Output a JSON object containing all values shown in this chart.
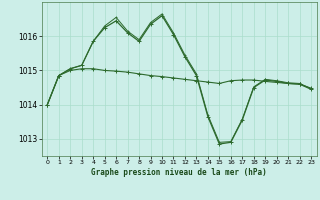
{
  "title": "Graphe pression niveau de la mer (hPa)",
  "bg_color": "#cceee8",
  "grid_color": "#aaddcc",
  "line_color": "#2d6a2d",
  "marker_color": "#2d6a2d",
  "xlim": [
    -0.5,
    23.5
  ],
  "ylim": [
    1012.5,
    1017.0
  ],
  "yticks": [
    1013,
    1014,
    1015,
    1016
  ],
  "xticks": [
    0,
    1,
    2,
    3,
    4,
    5,
    6,
    7,
    8,
    9,
    10,
    11,
    12,
    13,
    14,
    15,
    16,
    17,
    18,
    19,
    20,
    21,
    22,
    23
  ],
  "series1_x": [
    0,
    1,
    2,
    3,
    4,
    5,
    6,
    7,
    8,
    9,
    10,
    11,
    12,
    13,
    14,
    15,
    16,
    17,
    18,
    19,
    20,
    21,
    22,
    23
  ],
  "series1_y": [
    1014.0,
    1014.85,
    1015.0,
    1015.05,
    1015.05,
    1015.0,
    1014.98,
    1014.95,
    1014.9,
    1014.85,
    1014.82,
    1014.78,
    1014.74,
    1014.7,
    1014.66,
    1014.62,
    1014.7,
    1014.72,
    1014.72,
    1014.68,
    1014.65,
    1014.62,
    1014.6,
    1014.48
  ],
  "series2_x": [
    0,
    1,
    2,
    3,
    4,
    5,
    6,
    7,
    8,
    9,
    10,
    11,
    12,
    13,
    14,
    15,
    16,
    17,
    18,
    19,
    20,
    21,
    22,
    23
  ],
  "series2_y": [
    1014.0,
    1014.85,
    1015.05,
    1015.15,
    1015.85,
    1016.25,
    1016.45,
    1016.1,
    1015.85,
    1016.35,
    1016.6,
    1016.05,
    1015.4,
    1014.85,
    1013.65,
    1012.85,
    1012.9,
    1013.55,
    1014.5,
    1014.72,
    1014.68,
    1014.62,
    1014.6,
    1014.45
  ],
  "series3_x": [
    0,
    1,
    2,
    3,
    4,
    5,
    6,
    7,
    8,
    9,
    10,
    11,
    12,
    13,
    14,
    15,
    16,
    17,
    18,
    19,
    20,
    21,
    22,
    23
  ],
  "series3_y": [
    1014.0,
    1014.85,
    1015.05,
    1015.15,
    1015.85,
    1016.3,
    1016.55,
    1016.15,
    1015.9,
    1016.4,
    1016.65,
    1016.1,
    1015.45,
    1014.9,
    1013.7,
    1012.9,
    1012.92,
    1013.58,
    1014.52,
    1014.74,
    1014.7,
    1014.64,
    1014.62,
    1014.47
  ]
}
